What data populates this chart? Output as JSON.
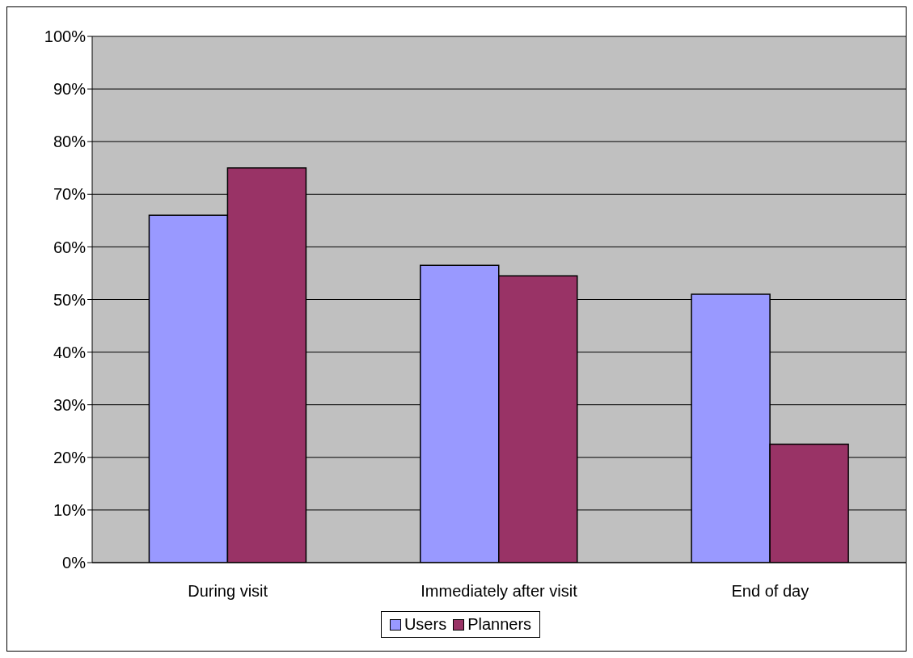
{
  "chart_data": {
    "type": "bar",
    "categories": [
      "During visit",
      "Immediately after visit",
      "End of day"
    ],
    "series": [
      {
        "name": "Users",
        "color": "#9999ff",
        "values": [
          66,
          56.5,
          51
        ]
      },
      {
        "name": "Planners",
        "color": "#993366",
        "values": [
          75,
          54.5,
          22.5
        ]
      }
    ],
    "ylim": [
      0,
      100
    ],
    "yticks": [
      {
        "value": 0,
        "label": "0%"
      },
      {
        "value": 10,
        "label": "10%"
      },
      {
        "value": 20,
        "label": "20%"
      },
      {
        "value": 30,
        "label": "30%"
      },
      {
        "value": 40,
        "label": "40%"
      },
      {
        "value": 50,
        "label": "50%"
      },
      {
        "value": 60,
        "label": "60%"
      },
      {
        "value": 70,
        "label": "70%"
      },
      {
        "value": 80,
        "label": "80%"
      },
      {
        "value": 90,
        "label": "90%"
      },
      {
        "value": 100,
        "label": "100%"
      }
    ],
    "grid": "y",
    "legend": "bottom"
  }
}
